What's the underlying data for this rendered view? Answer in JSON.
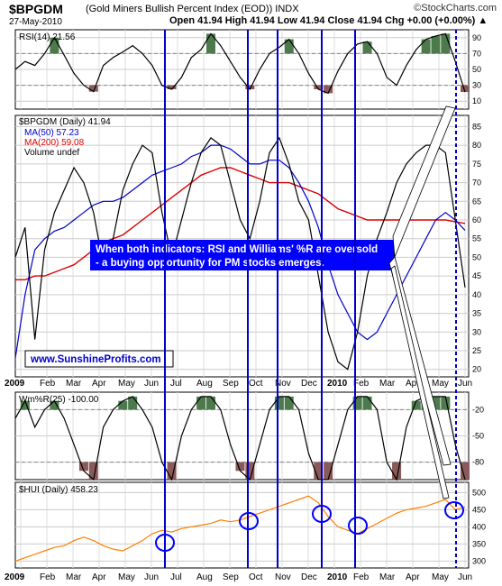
{
  "header": {
    "symbol": "$BPGDM",
    "description": "(Gold Miners Bullish Percent Index (EOD))  INDX",
    "date": "27-May-2010",
    "ohlc": "Open 41.94  High 41.94  Low 41.94  Close 41.94  Chg +0.00 (+0.00%) ▲",
    "brand": "©StockCharts.com"
  },
  "colors": {
    "blue_line": "#0000cc",
    "red_line": "#dd0000",
    "black_line": "#000000",
    "hui_line": "#ff8000",
    "overbought_fill": "#4c7a4c",
    "oversold_fill": "#8a5a5a",
    "annotation_text": "#ffffff",
    "annotation_bg": "#0000ff",
    "circle": "#0000ff"
  },
  "annotation": {
    "text_line1": "When both indicators: RSI and Williams' %R are oversold",
    "text_line2": "- a buying opportunity for PM stocks emerges.",
    "url": "www.SunshineProfits.com"
  },
  "chart_data": [
    {
      "type": "line",
      "panel": "RSI",
      "title": "RSI(14) 21.56",
      "y_ticks": [
        10,
        30,
        50,
        70,
        90
      ],
      "ylim": [
        0,
        100
      ],
      "series": [
        {
          "name": "RSI(14)",
          "values": [
            50,
            60,
            55,
            70,
            90,
            68,
            45,
            30,
            22,
            55,
            65,
            72,
            80,
            70,
            55,
            30,
            25,
            40,
            65,
            75,
            95,
            80,
            60,
            40,
            25,
            50,
            70,
            78,
            88,
            70,
            45,
            25,
            20,
            48,
            70,
            82,
            85,
            70,
            40,
            30,
            55,
            75,
            88,
            92,
            95,
            60,
            21.56
          ]
        }
      ]
    },
    {
      "type": "line",
      "panel": "BPGDM",
      "title": "$BPGDM (Daily) 41.94",
      "y_ticks": [
        20,
        25,
        30,
        35,
        40,
        45,
        50,
        55,
        60,
        65,
        70,
        75,
        80,
        85
      ],
      "ylim": [
        18,
        88
      ],
      "series": [
        {
          "name": "$BPGDM (Daily) 41.94",
          "values": [
            50,
            58,
            28,
            52,
            62,
            68,
            74,
            70,
            62,
            48,
            55,
            68,
            75,
            80,
            78,
            62,
            50,
            60,
            70,
            78,
            82,
            80,
            70,
            60,
            55,
            65,
            78,
            82,
            75,
            65,
            60,
            45,
            30,
            22,
            20,
            30,
            45,
            55,
            62,
            70,
            75,
            78,
            80,
            80,
            78,
            60,
            41.94
          ]
        },
        {
          "name": "MA(50) 57.23",
          "values": [
            23,
            40,
            52,
            55,
            57,
            58,
            60,
            62,
            64,
            65,
            65,
            66,
            68,
            70,
            72,
            73,
            74,
            75,
            77,
            78,
            80,
            80,
            79,
            77,
            75,
            75,
            76,
            76,
            74,
            70,
            65,
            58,
            48,
            40,
            35,
            30,
            28,
            30,
            35,
            40,
            45,
            50,
            55,
            60,
            62,
            60,
            57.23
          ]
        },
        {
          "name": "MA(200) 59.08",
          "values": [
            44,
            44,
            45,
            45,
            46,
            47,
            48,
            50,
            52,
            54,
            55,
            56,
            58,
            60,
            62,
            64,
            66,
            68,
            70,
            72,
            73,
            74,
            74,
            73,
            72,
            71,
            70,
            70,
            70,
            69,
            68,
            67,
            65,
            63,
            62,
            61,
            60,
            60,
            60,
            60,
            60,
            60,
            60,
            60,
            60,
            59.5,
            59.08
          ]
        },
        {
          "name": "Volume undef",
          "values": []
        }
      ]
    },
    {
      "type": "line",
      "panel": "Williams %R",
      "title": "Wm%R(25) -100.00",
      "y_ticks": [
        -20,
        -50,
        -80
      ],
      "ylim": [
        -100,
        0
      ],
      "series": [
        {
          "name": "Wm%R(25)",
          "values": [
            -30,
            -10,
            -40,
            -20,
            -10,
            -30,
            -60,
            -90,
            -100,
            -40,
            -20,
            -10,
            -5,
            -20,
            -40,
            -80,
            -100,
            -50,
            -20,
            -5,
            -5,
            -20,
            -60,
            -90,
            -100,
            -60,
            -20,
            -5,
            -5,
            -20,
            -70,
            -100,
            -100,
            -60,
            -20,
            -5,
            -5,
            -20,
            -80,
            -100,
            -40,
            -10,
            -5,
            -5,
            -5,
            -60,
            -100
          ]
        }
      ]
    },
    {
      "type": "line",
      "panel": "HUI",
      "title": "$HUI (Daily) 458.23",
      "y_ticks": [
        300,
        350,
        400,
        450,
        500
      ],
      "ylim": [
        280,
        530
      ],
      "series": [
        {
          "name": "$HUI (Daily) 458.23",
          "values": [
            300,
            310,
            320,
            330,
            340,
            345,
            360,
            370,
            360,
            345,
            335,
            330,
            345,
            360,
            380,
            390,
            385,
            395,
            400,
            405,
            410,
            420,
            415,
            420,
            430,
            440,
            450,
            460,
            470,
            480,
            490,
            470,
            430,
            400,
            390,
            380,
            395,
            410,
            425,
            440,
            450,
            455,
            460,
            470,
            480,
            450,
            458.23
          ]
        }
      ]
    }
  ],
  "x_axis": {
    "labels": [
      "2009",
      "Feb",
      "Mar",
      "Apr",
      "May",
      "Jun",
      "Jul",
      "Aug",
      "Sep",
      "Oct",
      "Nov",
      "Dec",
      "2010",
      "Feb",
      "Mar",
      "Apr",
      "May",
      "Jun"
    ]
  },
  "rsi_oversold_marks": [
    "Jun",
    "Sep",
    "Oct",
    "Dec",
    "Feb",
    "May"
  ]
}
